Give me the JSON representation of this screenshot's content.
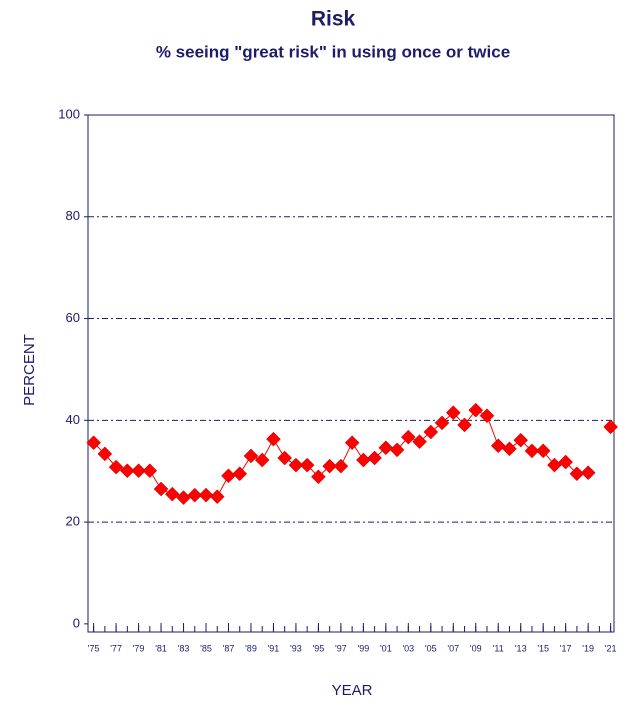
{
  "chart_data": {
    "type": "line",
    "title": "Risk",
    "subtitle": "% seeing \"great risk\" in using once or twice",
    "xlabel": "YEAR",
    "ylabel": "PERCENT",
    "x": [
      1975,
      1976,
      1977,
      1978,
      1979,
      1980,
      1981,
      1982,
      1983,
      1984,
      1985,
      1986,
      1987,
      1988,
      1989,
      1990,
      1991,
      1992,
      1993,
      1994,
      1995,
      1996,
      1997,
      1998,
      1999,
      2000,
      2001,
      2002,
      2003,
      2004,
      2005,
      2006,
      2007,
      2008,
      2009,
      2010,
      2011,
      2012,
      2013,
      2014,
      2015,
      2016,
      2017,
      2018,
      2019,
      2020,
      2021
    ],
    "series": [
      {
        "name": "great risk",
        "color": "#ff0000",
        "values": [
          35.6,
          33.4,
          30.8,
          30.1,
          30.1,
          30.1,
          26.5,
          25.5,
          24.8,
          25.3,
          25.3,
          25.0,
          29.1,
          29.5,
          33.0,
          32.2,
          36.3,
          32.6,
          31.2,
          31.2,
          28.9,
          31.0,
          31.0,
          35.6,
          32.2,
          32.6,
          34.6,
          34.2,
          36.7,
          35.8,
          37.7,
          39.5,
          41.5,
          39.1,
          42.0,
          40.9,
          35.0,
          34.4,
          36.1,
          34.0,
          34.0,
          31.2,
          31.8,
          29.5,
          29.7,
          null,
          38.7
        ]
      }
    ],
    "xlim": [
      1974.5,
      2021.3
    ],
    "ylim": [
      -1.6,
      100
    ],
    "yticks": [
      0,
      20,
      40,
      60,
      80,
      100
    ],
    "xticks": [
      {
        "value": 1975,
        "label": "'75"
      },
      {
        "value": 1977,
        "label": "'77"
      },
      {
        "value": 1979,
        "label": "'79"
      },
      {
        "value": 1981,
        "label": "'81"
      },
      {
        "value": 1983,
        "label": "'83"
      },
      {
        "value": 1985,
        "label": "'85"
      },
      {
        "value": 1987,
        "label": "'87"
      },
      {
        "value": 1989,
        "label": "'89"
      },
      {
        "value": 1991,
        "label": "'91"
      },
      {
        "value": 1993,
        "label": "'93"
      },
      {
        "value": 1995,
        "label": "'95"
      },
      {
        "value": 1997,
        "label": "'97"
      },
      {
        "value": 1999,
        "label": "'99"
      },
      {
        "value": 2001,
        "label": "'01"
      },
      {
        "value": 2003,
        "label": "'03"
      },
      {
        "value": 2005,
        "label": "'05"
      },
      {
        "value": 2007,
        "label": "'07"
      },
      {
        "value": 2009,
        "label": "'09"
      },
      {
        "value": 2011,
        "label": "'11"
      },
      {
        "value": 2013,
        "label": "'13"
      },
      {
        "value": 2015,
        "label": "'15"
      },
      {
        "value": 2017,
        "label": "'17"
      },
      {
        "value": 2019,
        "label": "'19"
      },
      {
        "value": 2021,
        "label": "'21"
      }
    ],
    "grid": true
  }
}
